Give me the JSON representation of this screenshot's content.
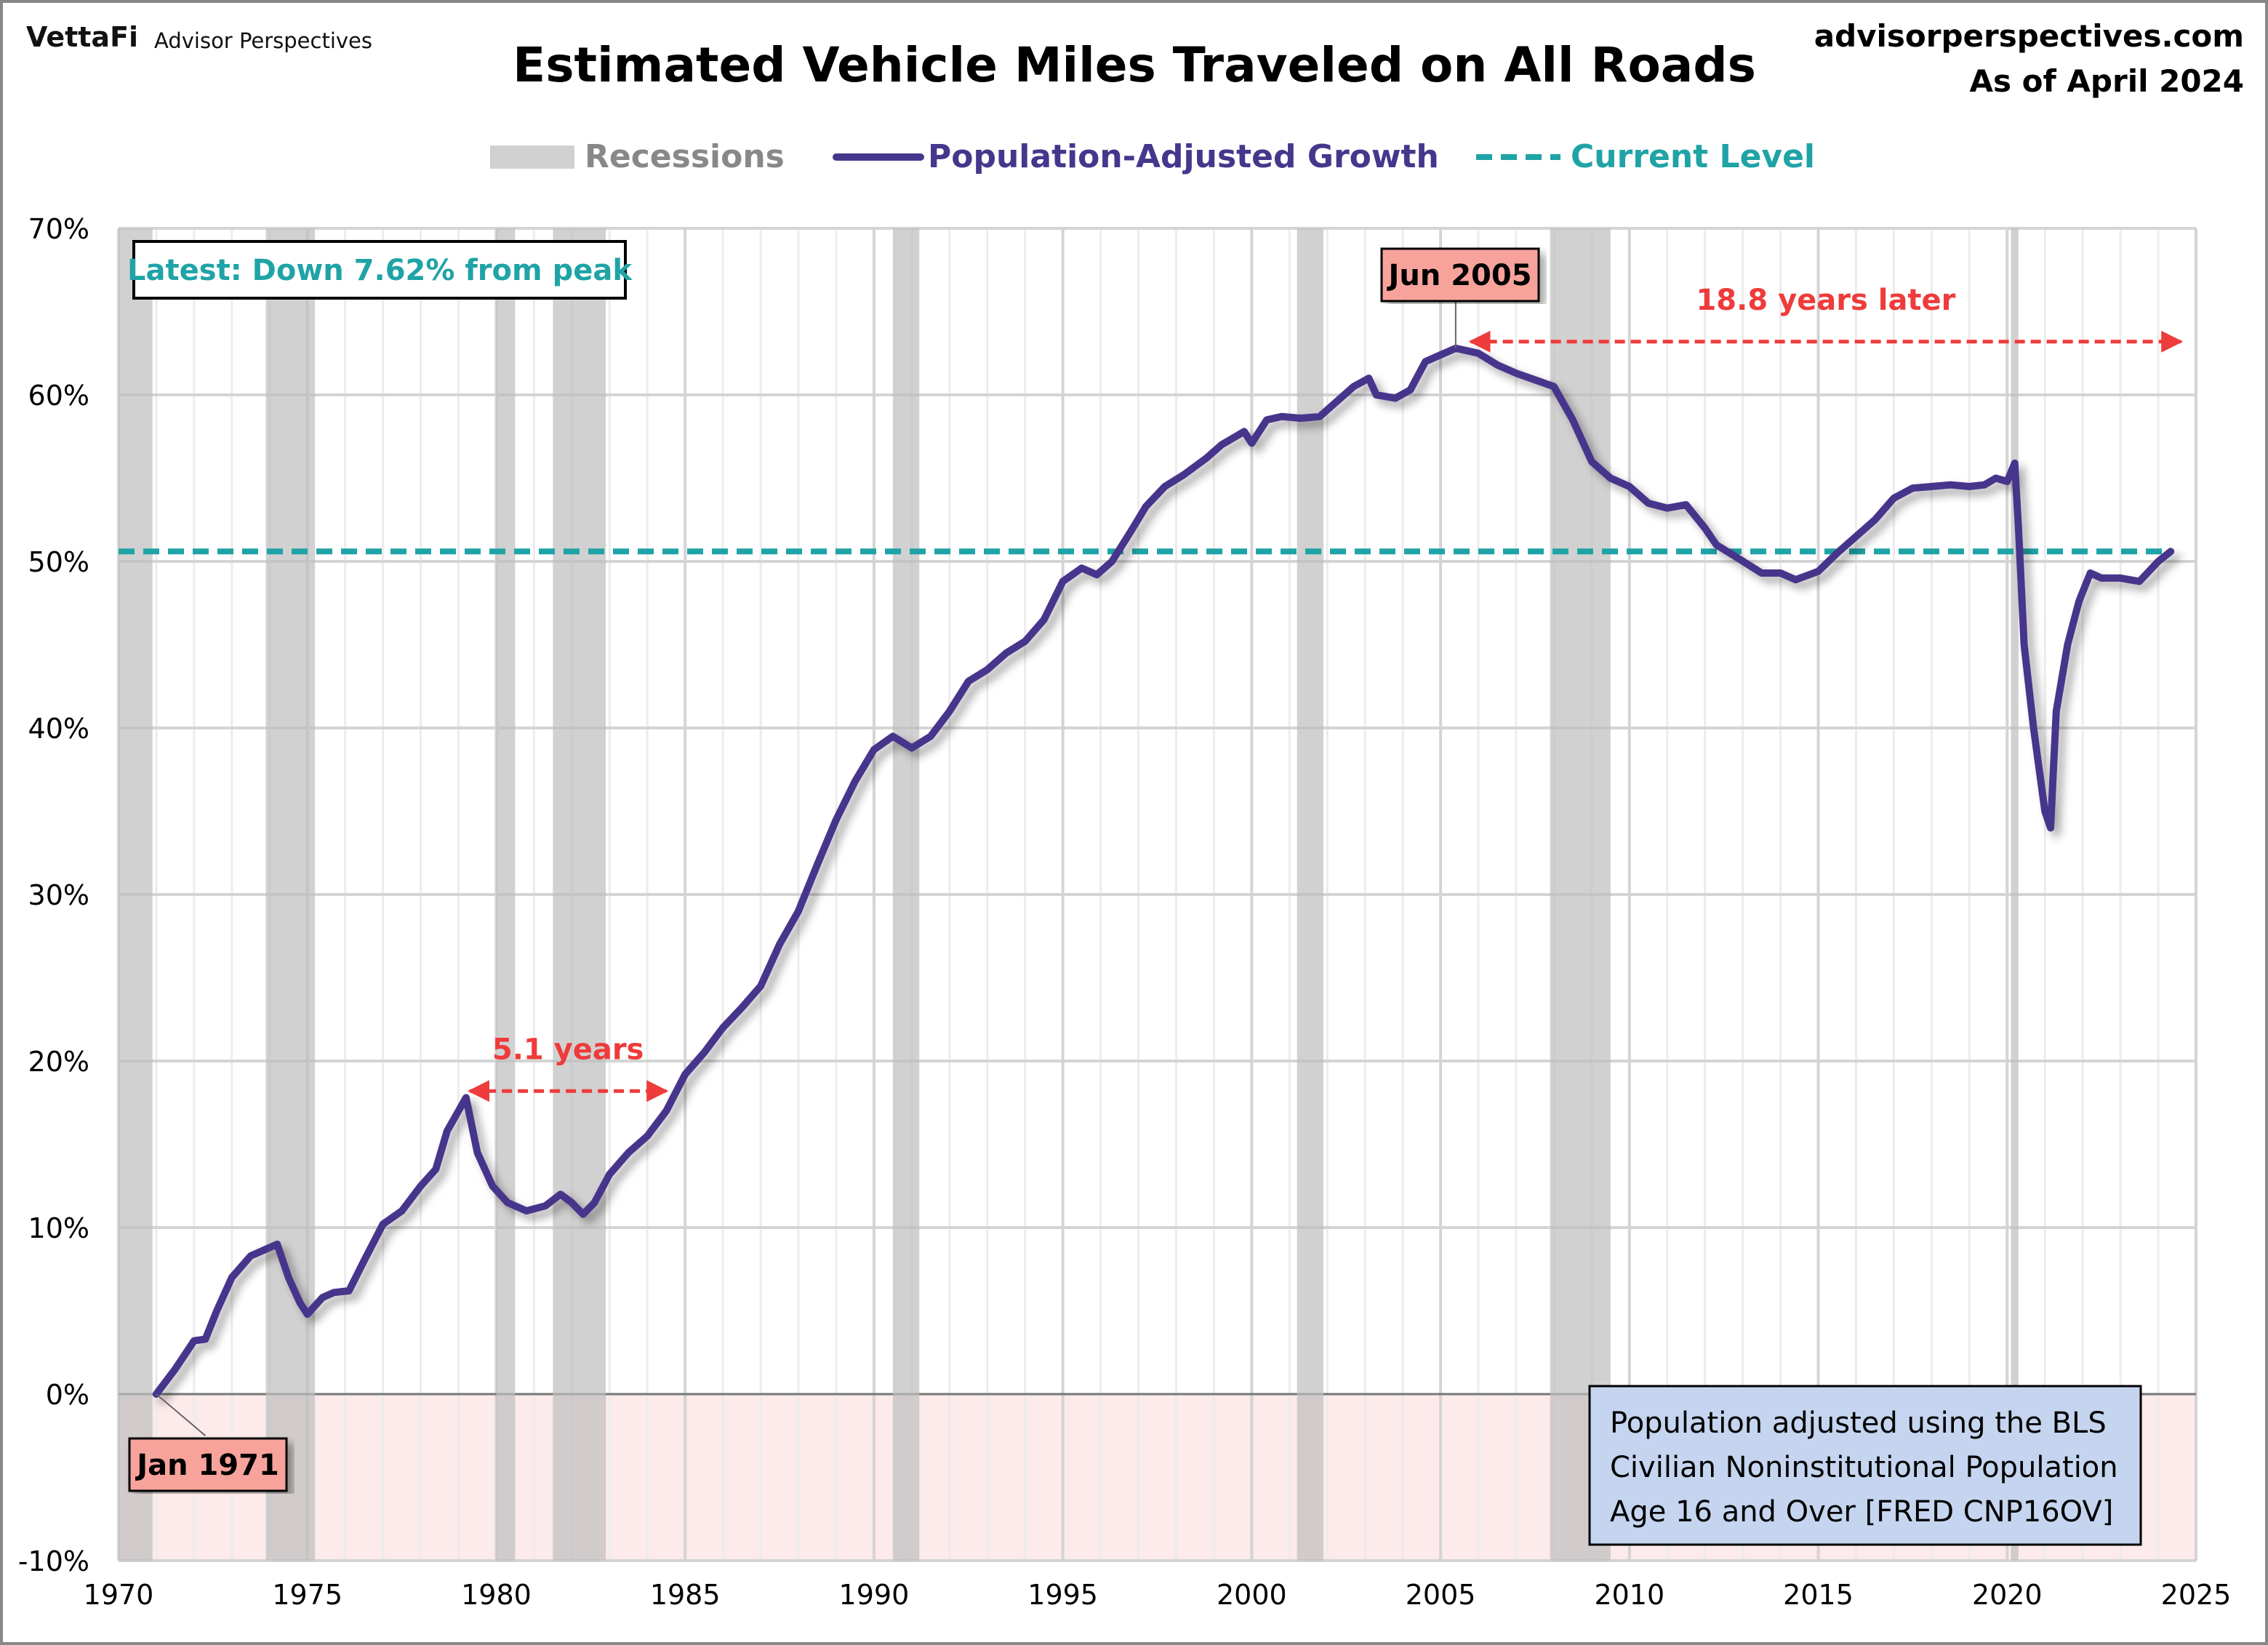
{
  "header": {
    "logo_brand": "VettaFi",
    "logo_sub": "Advisor Perspectives",
    "site": "advisorperspectives.com",
    "as_of": "As of April 2024"
  },
  "chart_data": {
    "type": "line",
    "title": "Estimated Vehicle Miles Traveled on All Roads",
    "xlim": [
      1970,
      2025
    ],
    "ylim": [
      -10,
      70
    ],
    "x_ticks": [
      "1970",
      "1975",
      "1980",
      "1985",
      "1990",
      "1995",
      "2000",
      "2005",
      "2010",
      "2015",
      "2020",
      "2025"
    ],
    "y_ticks": [
      "-10%",
      "0%",
      "10%",
      "20%",
      "30%",
      "40%",
      "50%",
      "60%",
      "70%"
    ],
    "grid": true,
    "legend_placement": "top",
    "legend": [
      {
        "label": "Recessions",
        "color": "#d0d0d0"
      },
      {
        "label": "Population-Adjusted Growth",
        "color": "#46368c"
      },
      {
        "label": "Current Level",
        "color": "#1fa3a6"
      }
    ],
    "recessions": [
      [
        1970.0,
        1970.9
      ],
      [
        1973.9,
        1975.2
      ],
      [
        1980.0,
        1980.5
      ],
      [
        1981.5,
        1982.9
      ],
      [
        1990.5,
        1991.2
      ],
      [
        2001.2,
        2001.9
      ],
      [
        2007.9,
        2009.5
      ],
      [
        2020.1,
        2020.3
      ]
    ],
    "current_level": 50.6,
    "series": [
      {
        "name": "Population-Adjusted Growth",
        "unit": "%",
        "points": [
          [
            1971.0,
            0
          ],
          [
            1971.5,
            1.5
          ],
          [
            1972.0,
            3.2
          ],
          [
            1972.3,
            3.3
          ],
          [
            1972.6,
            5
          ],
          [
            1973.0,
            7
          ],
          [
            1973.5,
            8.3
          ],
          [
            1974.0,
            8.8
          ],
          [
            1974.2,
            9.0
          ],
          [
            1974.5,
            7
          ],
          [
            1974.8,
            5.5
          ],
          [
            1975.0,
            4.8
          ],
          [
            1975.4,
            5.8
          ],
          [
            1975.7,
            6.1
          ],
          [
            1976.1,
            6.2
          ],
          [
            1976.5,
            8
          ],
          [
            1977.0,
            10.2
          ],
          [
            1977.5,
            11
          ],
          [
            1978.0,
            12.5
          ],
          [
            1978.4,
            13.5
          ],
          [
            1978.7,
            15.8
          ],
          [
            1979.0,
            17.0
          ],
          [
            1979.2,
            17.8
          ],
          [
            1979.5,
            14.5
          ],
          [
            1979.9,
            12.5
          ],
          [
            1980.3,
            11.5
          ],
          [
            1980.8,
            11
          ],
          [
            1981.3,
            11.3
          ],
          [
            1981.7,
            12
          ],
          [
            1982.0,
            11.5
          ],
          [
            1982.3,
            10.8
          ],
          [
            1982.6,
            11.5
          ],
          [
            1983.0,
            13.2
          ],
          [
            1983.5,
            14.5
          ],
          [
            1984.0,
            15.5
          ],
          [
            1984.5,
            17
          ],
          [
            1985.0,
            19.2
          ],
          [
            1985.5,
            20.5
          ],
          [
            1986.0,
            22
          ],
          [
            1986.5,
            23.2
          ],
          [
            1987.0,
            24.5
          ],
          [
            1987.5,
            27
          ],
          [
            1988.0,
            29
          ],
          [
            1988.5,
            31.8
          ],
          [
            1989.0,
            34.5
          ],
          [
            1989.5,
            36.8
          ],
          [
            1990.0,
            38.7
          ],
          [
            1990.5,
            39.5
          ],
          [
            1991.0,
            38.8
          ],
          [
            1991.5,
            39.5
          ],
          [
            1992.0,
            41
          ],
          [
            1992.5,
            42.8
          ],
          [
            1993.0,
            43.5
          ],
          [
            1993.5,
            44.5
          ],
          [
            1994.0,
            45.2
          ],
          [
            1994.5,
            46.5
          ],
          [
            1995.0,
            48.8
          ],
          [
            1995.5,
            49.6
          ],
          [
            1995.9,
            49.2
          ],
          [
            1996.3,
            50
          ],
          [
            1996.8,
            51.8
          ],
          [
            1997.2,
            53.3
          ],
          [
            1997.7,
            54.5
          ],
          [
            1998.2,
            55.2
          ],
          [
            1998.8,
            56.2
          ],
          [
            1999.2,
            57
          ],
          [
            1999.8,
            57.8
          ],
          [
            2000.0,
            57.1
          ],
          [
            2000.4,
            58.5
          ],
          [
            2000.8,
            58.7
          ],
          [
            2001.3,
            58.6
          ],
          [
            2001.8,
            58.7
          ],
          [
            2002.2,
            59.5
          ],
          [
            2002.7,
            60.5
          ],
          [
            2003.1,
            61
          ],
          [
            2003.3,
            60
          ],
          [
            2003.8,
            59.8
          ],
          [
            2004.2,
            60.3
          ],
          [
            2004.6,
            62
          ],
          [
            2005.0,
            62.4
          ],
          [
            2005.4,
            62.8
          ],
          [
            2006.0,
            62.5
          ],
          [
            2006.5,
            61.8
          ],
          [
            2007.0,
            61.3
          ],
          [
            2007.5,
            60.9
          ],
          [
            2008.0,
            60.5
          ],
          [
            2008.5,
            58.5
          ],
          [
            2009.0,
            56
          ],
          [
            2009.5,
            55
          ],
          [
            2010.0,
            54.5
          ],
          [
            2010.5,
            53.5
          ],
          [
            2011.0,
            53.2
          ],
          [
            2011.5,
            53.4
          ],
          [
            2012.0,
            52
          ],
          [
            2012.3,
            51
          ],
          [
            2012.8,
            50.3
          ],
          [
            2013.5,
            49.3
          ],
          [
            2014.0,
            49.3
          ],
          [
            2014.4,
            48.9
          ],
          [
            2015.0,
            49.4
          ],
          [
            2015.5,
            50.5
          ],
          [
            2016.0,
            51.5
          ],
          [
            2016.5,
            52.5
          ],
          [
            2017.0,
            53.8
          ],
          [
            2017.5,
            54.4
          ],
          [
            2018.0,
            54.5
          ],
          [
            2018.5,
            54.6
          ],
          [
            2019.0,
            54.5
          ],
          [
            2019.4,
            54.6
          ],
          [
            2019.7,
            55
          ],
          [
            2020.0,
            54.8
          ],
          [
            2020.2,
            55.9
          ],
          [
            2020.3,
            52
          ],
          [
            2020.45,
            45
          ],
          [
            2020.7,
            40
          ],
          [
            2021.0,
            35
          ],
          [
            2021.15,
            34
          ],
          [
            2021.3,
            41
          ],
          [
            2021.6,
            45
          ],
          [
            2021.9,
            47.6
          ],
          [
            2022.2,
            49.3
          ],
          [
            2022.5,
            49
          ],
          [
            2023.0,
            49
          ],
          [
            2023.5,
            48.8
          ],
          [
            2024.0,
            50.0
          ],
          [
            2024.33,
            50.6
          ]
        ]
      }
    ],
    "annotations": {
      "latest": "Latest: Down 7.62% from peak",
      "peak_label": "Jun 2005",
      "start_label": "Jan 1971",
      "gap1": "5.1 years",
      "gap2": "18.8 years later",
      "note_lines": [
        "Population adjusted using the BLS",
        "Civilian Noninstitutional Population",
        "Age 16 and Over  [FRED CNP16OV]"
      ]
    }
  }
}
